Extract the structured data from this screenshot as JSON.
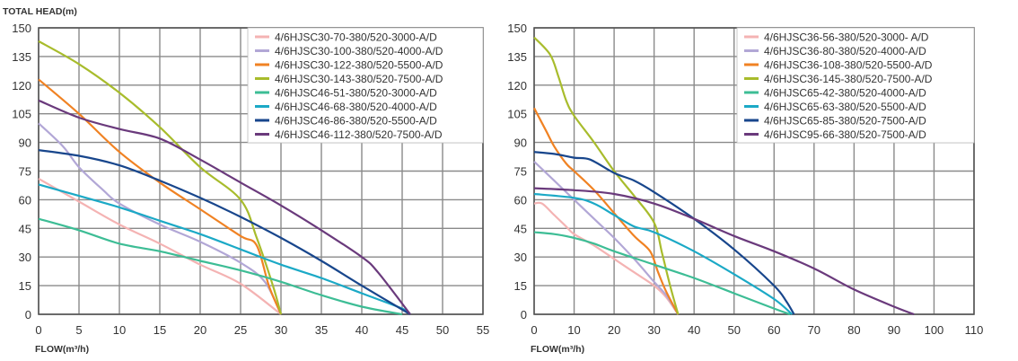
{
  "chart_data": [
    {
      "type": "line",
      "ylabel": "TOTAL HEAD(m)",
      "xlabel": "FLOW(m³/h)",
      "xlim": [
        0,
        55
      ],
      "ylim": [
        0,
        150
      ],
      "xticks": [
        0,
        5,
        10,
        15,
        20,
        25,
        30,
        35,
        40,
        45,
        50,
        55
      ],
      "yticks": [
        0,
        15,
        30,
        45,
        60,
        75,
        90,
        105,
        120,
        135,
        150
      ],
      "grid": true,
      "legend": "top-right",
      "series": [
        {
          "name": "4/6HJSC30-70-380/520-3000-A/D",
          "color": "#f4b3b3",
          "points": [
            [
              0,
              71
            ],
            [
              5,
              59
            ],
            [
              10,
              47
            ],
            [
              15,
              37
            ],
            [
              20,
              26
            ],
            [
              25,
              16
            ],
            [
              30,
              0
            ]
          ]
        },
        {
          "name": "4/6HJSC30-100-380/520-4000-A/D",
          "color": "#b2a7d6",
          "points": [
            [
              0,
              100
            ],
            [
              3,
              88
            ],
            [
              5,
              77
            ],
            [
              8,
              65
            ],
            [
              10,
              58
            ],
            [
              15,
              47
            ],
            [
              20,
              38
            ],
            [
              25,
              27
            ],
            [
              28,
              17
            ],
            [
              30,
              0
            ]
          ]
        },
        {
          "name": "4/6HJSC30-122-380/520-5500-A/D",
          "color": "#f08223",
          "points": [
            [
              0,
              123
            ],
            [
              5,
              105
            ],
            [
              10,
              85
            ],
            [
              15,
              69
            ],
            [
              20,
              55
            ],
            [
              25,
              41
            ],
            [
              27,
              36
            ],
            [
              28.5,
              15
            ],
            [
              30,
              0
            ]
          ]
        },
        {
          "name": "4/6HJSC30-143-380/520-7500-A/D",
          "color": "#a8bc2c",
          "points": [
            [
              0,
              143
            ],
            [
              5,
              131
            ],
            [
              10,
              116
            ],
            [
              15,
              98
            ],
            [
              20,
              77
            ],
            [
              25,
              60
            ],
            [
              27,
              40
            ],
            [
              29,
              15
            ],
            [
              30,
              0
            ]
          ]
        },
        {
          "name": "4/6HJSC46-51-380/520-3000-A/D",
          "color": "#3dbd95",
          "points": [
            [
              0,
              50
            ],
            [
              5,
              44
            ],
            [
              10,
              37
            ],
            [
              15,
              33
            ],
            [
              20,
              28
            ],
            [
              25,
              23
            ],
            [
              30,
              17
            ],
            [
              35,
              10
            ],
            [
              40,
              4
            ],
            [
              45,
              0
            ]
          ]
        },
        {
          "name": "4/6HJSC46-68-380/520-4000-A/D",
          "color": "#1ba9c6",
          "points": [
            [
              0,
              68
            ],
            [
              5,
              62
            ],
            [
              10,
              56
            ],
            [
              15,
              49
            ],
            [
              20,
              42
            ],
            [
              25,
              34
            ],
            [
              30,
              26
            ],
            [
              35,
              19
            ],
            [
              40,
              11
            ],
            [
              45,
              3
            ],
            [
              46,
              0
            ]
          ]
        },
        {
          "name": "4/6HJSC46-86-380/520-5500-A/D",
          "color": "#18468c",
          "points": [
            [
              0,
              86
            ],
            [
              5,
              83
            ],
            [
              10,
              78
            ],
            [
              15,
              70
            ],
            [
              20,
              61
            ],
            [
              25,
              51
            ],
            [
              30,
              40
            ],
            [
              35,
              28
            ],
            [
              40,
              15
            ],
            [
              46,
              0
            ]
          ]
        },
        {
          "name": "4/6HJSC46-112-380/520-7500-A/D",
          "color": "#6a3a7c",
          "points": [
            [
              0,
              112
            ],
            [
              5,
              103
            ],
            [
              10,
              97
            ],
            [
              15,
              92
            ],
            [
              20,
              81
            ],
            [
              25,
              69
            ],
            [
              30,
              57
            ],
            [
              35,
              44
            ],
            [
              40,
              30
            ],
            [
              42,
              22
            ],
            [
              46,
              0
            ]
          ]
        }
      ]
    },
    {
      "type": "line",
      "xlabel": "FLOW(m³/h)",
      "xlim": [
        0,
        110
      ],
      "ylim": [
        0,
        150
      ],
      "xticks": [
        0,
        10,
        20,
        30,
        40,
        50,
        60,
        70,
        80,
        90,
        100,
        110
      ],
      "yticks": [
        0,
        15,
        30,
        45,
        60,
        75,
        90,
        105,
        120,
        135,
        150
      ],
      "grid": true,
      "legend": "top-right",
      "series": [
        {
          "name": "4/6HJSC36-56-380/520-3000- A/D",
          "color": "#f4b3b3",
          "points": [
            [
              0,
              58
            ],
            [
              2,
              58
            ],
            [
              5,
              52
            ],
            [
              8,
              46
            ],
            [
              10,
              42
            ],
            [
              15,
              36
            ],
            [
              20,
              29
            ],
            [
              25,
              22
            ],
            [
              30,
              15
            ],
            [
              33,
              9
            ],
            [
              36,
              0
            ]
          ]
        },
        {
          "name": "4/6HJSC36-80-380/520-4000-A/D",
          "color": "#b2a7d6",
          "points": [
            [
              0,
              80
            ],
            [
              5,
              70
            ],
            [
              10,
              60
            ],
            [
              15,
              50
            ],
            [
              20,
              40
            ],
            [
              25,
              29
            ],
            [
              30,
              17
            ],
            [
              33,
              10
            ],
            [
              36,
              0
            ]
          ]
        },
        {
          "name": "4/6HJSC36-108-380/520-5500-A/D",
          "color": "#f08223",
          "points": [
            [
              0,
              108
            ],
            [
              3,
              96
            ],
            [
              5,
              88
            ],
            [
              8,
              79
            ],
            [
              10,
              75
            ],
            [
              15,
              65
            ],
            [
              20,
              53
            ],
            [
              25,
              41
            ],
            [
              29,
              33
            ],
            [
              31,
              22
            ],
            [
              33,
              12
            ],
            [
              36,
              0
            ]
          ]
        },
        {
          "name": "4/6HJSC36-145-380/520-7500-A/D",
          "color": "#a8bc2c",
          "points": [
            [
              0,
              145
            ],
            [
              4,
              136
            ],
            [
              6,
              125
            ],
            [
              8,
              112
            ],
            [
              10,
              104
            ],
            [
              15,
              90
            ],
            [
              20,
              75
            ],
            [
              25,
              62
            ],
            [
              30,
              48
            ],
            [
              32,
              32
            ],
            [
              34,
              15
            ],
            [
              36,
              0
            ]
          ]
        },
        {
          "name": "4/6HJSC65-42-380/520-4000-A/D",
          "color": "#3dbd95",
          "points": [
            [
              0,
              43
            ],
            [
              5,
              42
            ],
            [
              10,
              40
            ],
            [
              15,
              37
            ],
            [
              20,
              33
            ],
            [
              30,
              26
            ],
            [
              40,
              19
            ],
            [
              50,
              11
            ],
            [
              60,
              3
            ],
            [
              64,
              0
            ]
          ]
        },
        {
          "name": "4/6HJSC65-63-380/520-5500-A/D",
          "color": "#1ba9c6",
          "points": [
            [
              0,
              63
            ],
            [
              10,
              61
            ],
            [
              15,
              58
            ],
            [
              20,
              52
            ],
            [
              25,
              46
            ],
            [
              30,
              43
            ],
            [
              40,
              33
            ],
            [
              50,
              21
            ],
            [
              60,
              8
            ],
            [
              64.5,
              0
            ]
          ]
        },
        {
          "name": "4/6HJSC65-85-380/520-7500-A/D",
          "color": "#18468c",
          "points": [
            [
              0,
              85
            ],
            [
              5,
              84
            ],
            [
              10,
              82
            ],
            [
              14,
              81
            ],
            [
              20,
              74
            ],
            [
              25,
              70
            ],
            [
              30,
              64
            ],
            [
              40,
              50
            ],
            [
              50,
              34
            ],
            [
              60,
              15
            ],
            [
              63,
              7
            ],
            [
              65,
              0
            ]
          ]
        },
        {
          "name": "4/6HJSC95-66-380/520-7500-A/D",
          "color": "#6a3a7c",
          "points": [
            [
              0,
              66
            ],
            [
              10,
              65
            ],
            [
              20,
              63
            ],
            [
              30,
              58
            ],
            [
              40,
              50
            ],
            [
              50,
              41
            ],
            [
              60,
              33
            ],
            [
              70,
              24
            ],
            [
              80,
              13
            ],
            [
              90,
              4
            ],
            [
              95,
              0
            ]
          ]
        }
      ]
    }
  ]
}
